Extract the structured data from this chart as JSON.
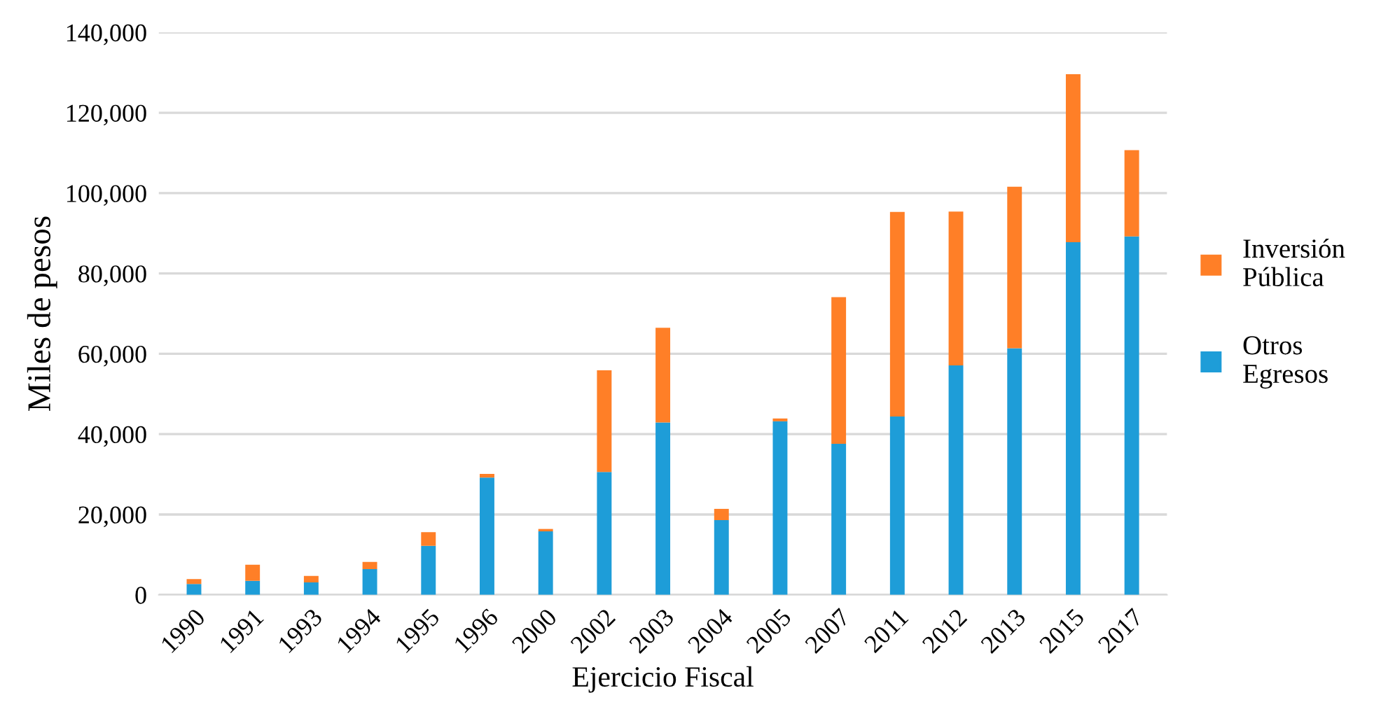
{
  "chart_data": {
    "type": "bar",
    "stacked": true,
    "xlabel": "Ejercicio Fiscal",
    "ylabel": "Miles de pesos",
    "categories": [
      "1990",
      "1991",
      "1993",
      "1994",
      "1995",
      "1996",
      "2000",
      "2002",
      "2003",
      "2004",
      "2005",
      "2007",
      "2011",
      "2012",
      "2013",
      "2015",
      "2017"
    ],
    "series": [
      {
        "name": "Otros Egresos",
        "color": "#1e9dd8",
        "values": [
          2700,
          3500,
          3100,
          6400,
          12200,
          29200,
          15800,
          30600,
          42900,
          18600,
          43200,
          37600,
          44400,
          57100,
          61400,
          87800,
          89200
        ]
      },
      {
        "name": "Inversión Pública",
        "color": "#ff7f27",
        "values": [
          1200,
          4000,
          1600,
          1800,
          3400,
          900,
          600,
          25300,
          23600,
          2800,
          700,
          36500,
          50900,
          38300,
          40200,
          41800,
          21500
        ]
      }
    ],
    "ylim": [
      0,
      140000
    ],
    "yticks": [
      {
        "value": 0,
        "label": "0"
      },
      {
        "value": 20000,
        "label": "20,000"
      },
      {
        "value": 40000,
        "label": "40,000"
      },
      {
        "value": 60000,
        "label": "60,000"
      },
      {
        "value": 80000,
        "label": "80,000"
      },
      {
        "value": 100000,
        "label": "100,000"
      },
      {
        "value": 120000,
        "label": "120,000"
      },
      {
        "value": 140000,
        "label": "140,000"
      }
    ],
    "grid": "y",
    "legend": "right"
  }
}
